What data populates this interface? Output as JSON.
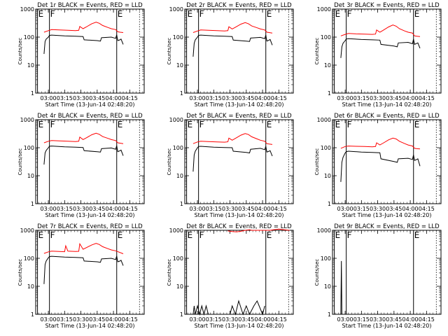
{
  "x_tick_labels": [
    "03:00",
    "03:15",
    "03:30",
    "03:45",
    "04:00",
    "04:15"
  ],
  "x_tick_values": [
    180,
    195,
    210,
    225,
    240,
    255
  ],
  "xlabel": "Start Time (13-Jun-14 02:48:20)",
  "ylabel": "Counts/sec",
  "y_tick_labels": [
    "1",
    "10",
    "100",
    "1000"
  ],
  "marker_labels": {
    "e": "E",
    "f": "F"
  },
  "colors": {
    "events": "#000000",
    "lld": "#ff0000",
    "axes": "#000000"
  },
  "chart_data": [
    {
      "title": "Det 1r BLACK = Events, RED = LLD",
      "type": "line",
      "xlim": [
        168.33,
        268.33
      ],
      "ylim": [
        1,
        1000
      ],
      "yscale": "log",
      "markers": {
        "e_left": 170,
        "f": 181,
        "e_right": 243,
        "dotted": 264
      },
      "series": [
        {
          "name": "Events",
          "x": [
            176,
            177,
            178,
            180,
            181,
            183,
            195,
            205,
            212,
            213,
            225,
            228,
            229,
            238,
            242,
            243,
            244,
            246,
            247,
            249
          ],
          "y": [
            25,
            70,
            85,
            100,
            115,
            118,
            110,
            108,
            105,
            80,
            75,
            72,
            95,
            100,
            90,
            120,
            75,
            80,
            85,
            55
          ]
        },
        {
          "name": "LLD",
          "x": [
            176,
            180,
            183,
            190,
            198,
            205,
            208,
            209,
            212,
            215,
            220,
            224,
            227,
            230,
            235,
            238,
            242,
            244,
            246,
            249
          ],
          "y": [
            150,
            170,
            185,
            180,
            175,
            170,
            175,
            240,
            200,
            230,
            300,
            340,
            310,
            260,
            220,
            200,
            185,
            155,
            150,
            145
          ]
        }
      ]
    },
    {
      "title": "Det 2r BLACK = Events, RED = LLD",
      "type": "line",
      "xlim": [
        168.33,
        268.33
      ],
      "ylim": [
        1,
        1000
      ],
      "yscale": "log",
      "markers": {
        "e_left": 170,
        "f": 181,
        "e_right": 243,
        "dotted": 264
      },
      "series": [
        {
          "name": "Events",
          "x": [
            176,
            177,
            178,
            180,
            181,
            183,
            195,
            205,
            212,
            213,
            225,
            228,
            229,
            238,
            242,
            243,
            244,
            246,
            247,
            249
          ],
          "y": [
            20,
            60,
            80,
            100,
            115,
            118,
            110,
            108,
            105,
            78,
            72,
            70,
            92,
            98,
            88,
            118,
            72,
            78,
            82,
            52
          ]
        },
        {
          "name": "LLD",
          "x": [
            176,
            180,
            183,
            190,
            198,
            205,
            208,
            209,
            212,
            215,
            220,
            224,
            227,
            230,
            235,
            238,
            242,
            244,
            246,
            249
          ],
          "y": [
            145,
            165,
            180,
            175,
            170,
            165,
            170,
            235,
            195,
            225,
            290,
            330,
            300,
            250,
            215,
            195,
            180,
            150,
            145,
            140
          ]
        }
      ]
    },
    {
      "title": "Det 3r BLACK = Events, RED = LLD",
      "type": "line",
      "xlim": [
        168.33,
        268.33
      ],
      "ylim": [
        1,
        1000
      ],
      "yscale": "log",
      "markers": {
        "e_left": 170,
        "f": 181,
        "e_right": 243,
        "dotted": 264
      },
      "series": [
        {
          "name": "Events",
          "x": [
            176,
            177,
            178,
            180,
            181,
            183,
            195,
            205,
            212,
            213,
            225,
            228,
            229,
            238,
            242,
            243,
            244,
            246,
            247,
            249
          ],
          "y": [
            18,
            45,
            60,
            75,
            85,
            88,
            82,
            80,
            78,
            55,
            48,
            45,
            62,
            65,
            58,
            85,
            55,
            60,
            62,
            40
          ]
        },
        {
          "name": "LLD",
          "x": [
            176,
            180,
            183,
            190,
            198,
            205,
            208,
            209,
            212,
            215,
            220,
            224,
            227,
            230,
            235,
            238,
            242,
            244,
            246,
            249
          ],
          "y": [
            110,
            125,
            135,
            130,
            128,
            125,
            128,
            180,
            150,
            175,
            230,
            270,
            245,
            200,
            165,
            150,
            140,
            110,
            108,
            105
          ]
        }
      ]
    },
    {
      "title": "Det 4r BLACK = Events, RED = LLD",
      "type": "line",
      "xlim": [
        168.33,
        268.33
      ],
      "ylim": [
        1,
        1000
      ],
      "yscale": "log",
      "markers": {
        "e_left": 170,
        "f": 181,
        "e_right": 243,
        "dotted": 264
      },
      "series": [
        {
          "name": "Events",
          "x": [
            176,
            177,
            178,
            180,
            181,
            183,
            195,
            205,
            212,
            213,
            225,
            228,
            229,
            238,
            242,
            243,
            244,
            246,
            247,
            249
          ],
          "y": [
            25,
            65,
            80,
            100,
            112,
            115,
            108,
            105,
            102,
            78,
            72,
            70,
            92,
            98,
            88,
            118,
            72,
            78,
            82,
            52
          ]
        },
        {
          "name": "LLD",
          "x": [
            176,
            180,
            183,
            190,
            198,
            205,
            208,
            209,
            212,
            215,
            220,
            224,
            227,
            230,
            235,
            238,
            242,
            244,
            246,
            249
          ],
          "y": [
            150,
            170,
            180,
            175,
            170,
            165,
            170,
            240,
            195,
            225,
            290,
            330,
            300,
            250,
            215,
            195,
            180,
            150,
            145,
            140
          ]
        }
      ]
    },
    {
      "title": "Det 5r BLACK = Events, RED = LLD",
      "type": "line",
      "xlim": [
        168.33,
        268.33
      ],
      "ylim": [
        1,
        1000
      ],
      "yscale": "log",
      "markers": {
        "e_left": 170,
        "f": 181,
        "e_right": 243,
        "dotted": 264
      },
      "series": [
        {
          "name": "Events",
          "x": [
            176,
            177,
            178,
            180,
            181,
            183,
            195,
            205,
            212,
            213,
            225,
            228,
            229,
            238,
            242,
            243,
            244,
            246,
            247,
            249
          ],
          "y": [
            14,
            55,
            75,
            100,
            110,
            112,
            105,
            102,
            100,
            75,
            68,
            65,
            88,
            95,
            85,
            112,
            70,
            75,
            78,
            50
          ]
        },
        {
          "name": "LLD",
          "x": [
            176,
            180,
            183,
            190,
            198,
            205,
            208,
            209,
            212,
            215,
            220,
            224,
            227,
            230,
            235,
            238,
            242,
            244,
            246,
            249
          ],
          "y": [
            140,
            160,
            170,
            165,
            160,
            158,
            162,
            220,
            185,
            215,
            280,
            320,
            295,
            245,
            205,
            185,
            170,
            140,
            135,
            130
          ]
        }
      ]
    },
    {
      "title": "Det 6r BLACK = Events, RED = LLD",
      "type": "line",
      "xlim": [
        168.33,
        268.33
      ],
      "ylim": [
        1,
        1000
      ],
      "yscale": "log",
      "markers": {
        "e_left": 170,
        "f": 181,
        "e_right": 243,
        "dotted": 264
      },
      "series": [
        {
          "name": "Events",
          "x": [
            176,
            177,
            178,
            180,
            181,
            183,
            195,
            205,
            212,
            213,
            225,
            228,
            229,
            238,
            242,
            243,
            244,
            246,
            247,
            249
          ],
          "y": [
            6,
            30,
            45,
            65,
            72,
            75,
            70,
            68,
            66,
            40,
            32,
            30,
            40,
            42,
            38,
            55,
            35,
            38,
            40,
            22
          ]
        },
        {
          "name": "LLD",
          "x": [
            176,
            180,
            183,
            190,
            198,
            205,
            208,
            209,
            212,
            215,
            220,
            224,
            227,
            230,
            235,
            238,
            242,
            244,
            246,
            249
          ],
          "y": [
            95,
            110,
            115,
            112,
            110,
            108,
            110,
            150,
            125,
            145,
            190,
            220,
            205,
            170,
            140,
            125,
            115,
            95,
            92,
            90
          ]
        }
      ]
    },
    {
      "title": "Det 7r BLACK = Events, RED = LLD",
      "type": "line",
      "xlim": [
        168.33,
        268.33
      ],
      "ylim": [
        1,
        1000
      ],
      "yscale": "log",
      "markers": {
        "e_left": 170,
        "f": 181,
        "e_right": 243,
        "dotted": 264
      },
      "series": [
        {
          "name": "Events",
          "x": [
            176,
            177,
            178,
            180,
            181,
            183,
            195,
            205,
            212,
            213,
            225,
            228,
            229,
            238,
            242,
            243,
            244,
            246,
            247,
            249
          ],
          "y": [
            12,
            60,
            80,
            105,
            115,
            118,
            110,
            108,
            105,
            80,
            75,
            72,
            95,
            100,
            90,
            120,
            75,
            80,
            85,
            55
          ]
        },
        {
          "name": "LLD",
          "x": [
            176,
            180,
            183,
            190,
            195,
            196,
            198,
            205,
            208,
            209,
            212,
            215,
            220,
            224,
            227,
            230,
            235,
            238,
            242,
            249
          ],
          "y": [
            150,
            170,
            180,
            175,
            172,
            280,
            180,
            175,
            178,
            330,
            210,
            240,
            300,
            340,
            310,
            260,
            220,
            200,
            185,
            145
          ]
        }
      ]
    },
    {
      "title": "Det 8r BLACK = Events, RED = LLD",
      "type": "line",
      "xlim": [
        168.33,
        268.33
      ],
      "ylim": [
        1,
        1000
      ],
      "yscale": "log",
      "markers": {
        "e_left": 170,
        "f": 181,
        "e_right": 243,
        "dotted": 264
      },
      "series": [
        {
          "name": "Events",
          "x": [
            176,
            177,
            178,
            180,
            182,
            184,
            186,
            188,
            190,
            200,
            210,
            212,
            215,
            218,
            222,
            225,
            228,
            232,
            235,
            240,
            242
          ],
          "y": [
            1,
            2,
            1,
            2,
            1,
            2,
            1,
            2,
            1,
            1,
            1,
            2,
            1,
            3,
            1,
            2,
            1,
            2,
            3,
            1,
            2
          ]
        },
        {
          "name": "LLD",
          "x": [
            208,
            212,
            216,
            220,
            224,
            228,
            230,
            247,
            250,
            255,
            260,
            265
          ],
          "y": [
            950,
            900,
            880,
            920,
            1000,
            1050,
            1000,
            1000,
            1050,
            1100,
            1050,
            1000
          ]
        }
      ]
    },
    {
      "title": "Det 9r BLACK = Events, RED = LLD",
      "type": "line",
      "xlim": [
        168.33,
        268.33
      ],
      "ylim": [
        1,
        1000
      ],
      "yscale": "log",
      "markers": {
        "e_left": 170,
        "f": 181,
        "e_right": 243,
        "dotted": 264
      },
      "series": [
        {
          "name": "Events",
          "x": [
            176,
            176.5,
            177
          ],
          "y": [
            1,
            80,
            1
          ]
        },
        {
          "name": "LLD",
          "x": [],
          "y": []
        }
      ]
    }
  ]
}
